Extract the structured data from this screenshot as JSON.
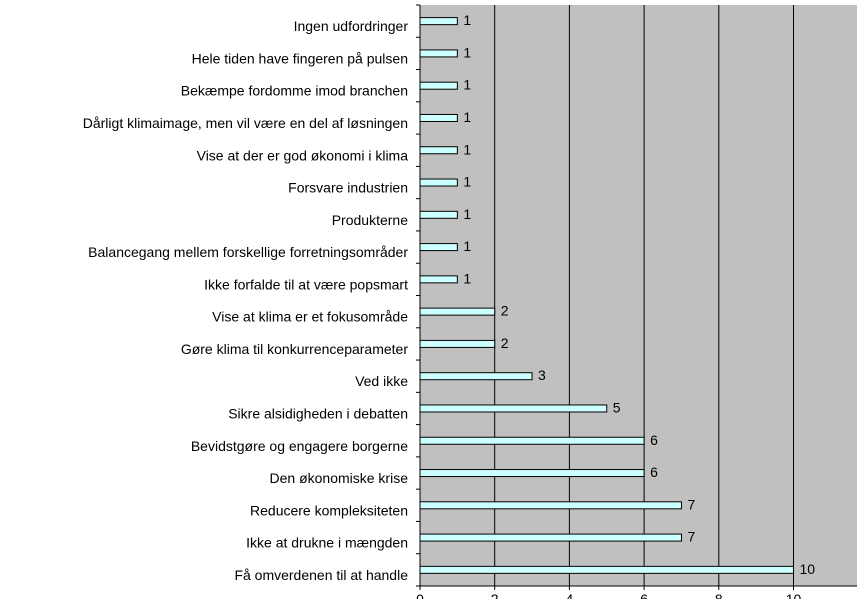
{
  "chart_data": {
    "type": "bar",
    "orientation": "horizontal",
    "title": "",
    "xlabel": "",
    "ylabel": "",
    "categories": [
      "Ingen udfordringer",
      "Hele tiden have fingeren på pulsen",
      "Bekæmpe fordomme imod branchen",
      "Dårligt klimaimage, men vil være en del af løsningen",
      "Vise at der er god økonomi i klima",
      "Forsvare industrien",
      "Produkterne",
      "Balancegang mellem forskellige forretningsområder",
      "Ikke forfalde til at være popsmart",
      "Vise at klima er et fokusområde",
      "Gøre klima til konkurrenceparameter",
      "Ved ikke",
      "Sikre alsidigheden i debatten",
      "Bevidstgøre og engagere borgerne",
      "Den økonomiske krise",
      "Reducere kompleksiteten",
      "Ikke at drukne i mængden",
      "Få omverdenen til at handle"
    ],
    "values": [
      1,
      1,
      1,
      1,
      1,
      1,
      1,
      1,
      1,
      2,
      2,
      3,
      5,
      6,
      6,
      7,
      7,
      10
    ],
    "xlim": [
      0,
      11.7
    ],
    "xticks": [
      0,
      2,
      4,
      6,
      8,
      10
    ],
    "grid": "vertical",
    "legend": "none",
    "colors": {
      "plot_background": "#c0c0c0",
      "bar_fill": "#ccffff",
      "bar_stroke": "#000000",
      "grid": "#000000"
    }
  }
}
